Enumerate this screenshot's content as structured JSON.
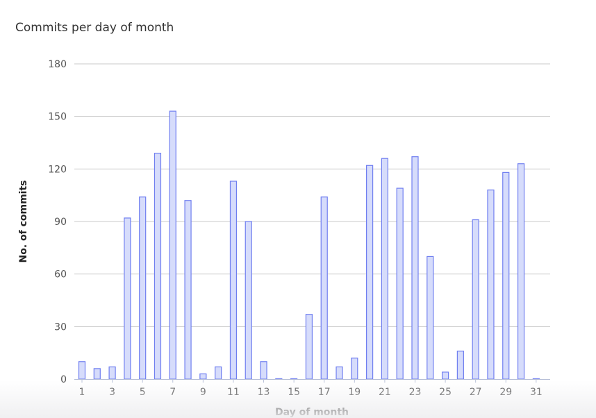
{
  "chart_data": {
    "type": "bar",
    "title": "Commits per day of month",
    "xlabel": "Day of month",
    "ylabel": "No. of commits",
    "ylim": [
      0,
      180
    ],
    "yticks": [
      0,
      30,
      60,
      90,
      120,
      150,
      180
    ],
    "grid": true,
    "legend": "none",
    "categories": [
      "1",
      "2",
      "3",
      "4",
      "5",
      "6",
      "7",
      "8",
      "9",
      "10",
      "11",
      "12",
      "13",
      "14",
      "15",
      "16",
      "17",
      "18",
      "19",
      "20",
      "21",
      "22",
      "23",
      "24",
      "25",
      "26",
      "27",
      "28",
      "29",
      "30",
      "31"
    ],
    "xtick_labels": [
      "1",
      "3",
      "5",
      "7",
      "9",
      "11",
      "13",
      "15",
      "17",
      "19",
      "21",
      "23",
      "25",
      "27",
      "29",
      "31"
    ],
    "values": [
      10,
      6,
      7,
      92,
      104,
      129,
      153,
      102,
      3,
      7,
      113,
      90,
      10,
      0,
      0,
      37,
      104,
      7,
      12,
      122,
      126,
      109,
      127,
      70,
      4,
      16,
      91,
      108,
      118,
      123,
      0
    ],
    "colors": {
      "bar_fill": "#d6dcfb",
      "bar_stroke": "#6f7ef0",
      "grid": "#c8c8c8",
      "axis": "#b8c0d8",
      "text": "#333333"
    }
  }
}
